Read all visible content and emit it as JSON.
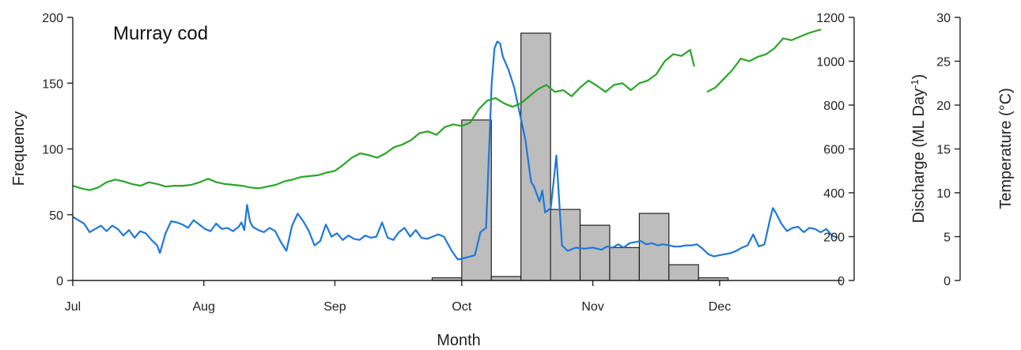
{
  "chart_data": {
    "type": "bar+line",
    "title": "Murray cod",
    "xlabel": "Month",
    "x_ticks": [
      "Jul",
      "Aug",
      "Sep",
      "Oct",
      "Nov",
      "Dec"
    ],
    "x_tick_days": [
      0,
      31,
      62,
      92,
      123,
      153
    ],
    "xlim_days": [
      0,
      182
    ],
    "axes": {
      "frequency": {
        "label": "Frequency",
        "range": [
          0,
          200
        ],
        "ticks": [
          0,
          50,
          100,
          150,
          200
        ]
      },
      "discharge": {
        "label": "Discharge (ML Day⁻¹)",
        "label_main": "Discharge (ML Day",
        "label_sup": "-1",
        "label_end": ")",
        "range": [
          0,
          1200
        ],
        "ticks": [
          0,
          200,
          400,
          600,
          800,
          1000,
          1200
        ]
      },
      "temperature": {
        "label": "Temperature (°C)",
        "range": [
          0,
          30
        ],
        "ticks": [
          0,
          5,
          10,
          15,
          20,
          25,
          30
        ]
      }
    },
    "bars": {
      "axis": "frequency",
      "color": "#bdbdbd",
      "items": [
        {
          "start": 85,
          "end": 92,
          "value": 2
        },
        {
          "start": 92,
          "end": 99,
          "value": 122
        },
        {
          "start": 99,
          "end": 106,
          "value": 3
        },
        {
          "start": 106,
          "end": 113,
          "value": 188
        },
        {
          "start": 113,
          "end": 120,
          "value": 54
        },
        {
          "start": 120,
          "end": 127,
          "value": 42
        },
        {
          "start": 127,
          "end": 134,
          "value": 25
        },
        {
          "start": 134,
          "end": 141,
          "value": 51
        },
        {
          "start": 141,
          "end": 148,
          "value": 12
        },
        {
          "start": 148,
          "end": 155,
          "value": 2
        }
      ]
    },
    "series": [
      {
        "axis": "discharge",
        "color": "#1f78d8",
        "points": [
          [
            0,
            290
          ],
          [
            2,
            275
          ],
          [
            4,
            260
          ],
          [
            6,
            220
          ],
          [
            8,
            235
          ],
          [
            10,
            250
          ],
          [
            12,
            225
          ],
          [
            14,
            250
          ],
          [
            16,
            235
          ],
          [
            18,
            205
          ],
          [
            20,
            230
          ],
          [
            22,
            195
          ],
          [
            24,
            225
          ],
          [
            26,
            215
          ],
          [
            28,
            185
          ],
          [
            30,
            160
          ],
          [
            31,
            125
          ],
          [
            33,
            215
          ],
          [
            35,
            270
          ],
          [
            37,
            265
          ],
          [
            39,
            255
          ],
          [
            41,
            240
          ],
          [
            43,
            275
          ],
          [
            45,
            255
          ],
          [
            47,
            235
          ],
          [
            49,
            225
          ],
          [
            51,
            260
          ],
          [
            53,
            235
          ],
          [
            55,
            240
          ],
          [
            57,
            225
          ],
          [
            59,
            245
          ],
          [
            60,
            265
          ],
          [
            61,
            230
          ],
          [
            62,
            345
          ],
          [
            63,
            270
          ],
          [
            64,
            245
          ],
          [
            66,
            230
          ],
          [
            68,
            220
          ],
          [
            70,
            240
          ],
          [
            72,
            225
          ],
          [
            74,
            175
          ],
          [
            76,
            135
          ],
          [
            78,
            250
          ],
          [
            80,
            305
          ],
          [
            82,
            270
          ],
          [
            84,
            225
          ],
          [
            86,
            160
          ],
          [
            88,
            180
          ],
          [
            90,
            255
          ],
          [
            92,
            200
          ],
          [
            94,
            215
          ],
          [
            96,
            185
          ],
          [
            98,
            205
          ],
          [
            100,
            190
          ],
          [
            102,
            185
          ],
          [
            104,
            205
          ],
          [
            106,
            195
          ],
          [
            108,
            200
          ],
          [
            110,
            265
          ],
          [
            112,
            195
          ],
          [
            114,
            185
          ],
          [
            116,
            220
          ],
          [
            118,
            240
          ],
          [
            120,
            200
          ],
          [
            122,
            230
          ],
          [
            124,
            195
          ],
          [
            126,
            190
          ],
          [
            128,
            200
          ],
          [
            130,
            210
          ],
          [
            132,
            200
          ],
          [
            135,
            130
          ],
          [
            137,
            95
          ],
          [
            140,
            105
          ],
          [
            143,
            115
          ],
          [
            145,
            220
          ],
          [
            147,
            240
          ],
          [
            149,
            900
          ],
          [
            150,
            1060
          ],
          [
            151,
            1090
          ],
          [
            152,
            1080
          ],
          [
            153,
            1020
          ],
          [
            155,
            960
          ],
          [
            157,
            880
          ],
          [
            159,
            760
          ],
          [
            161,
            640
          ],
          [
            163,
            450
          ],
          [
            164,
            430
          ],
          [
            166,
            360
          ],
          [
            167,
            410
          ],
          [
            168,
            310
          ],
          [
            170,
            330
          ],
          [
            172,
            570
          ],
          [
            174,
            160
          ],
          [
            176,
            135
          ],
          [
            179,
            150
          ],
          [
            182,
            145
          ],
          [
            185,
            150
          ],
          [
            188,
            140
          ],
          [
            190,
            155
          ],
          [
            192,
            150
          ],
          [
            194,
            165
          ],
          [
            196,
            150
          ],
          [
            198,
            170
          ],
          [
            200,
            175
          ],
          [
            202,
            180
          ],
          [
            204,
            165
          ],
          [
            206,
            170
          ],
          [
            208,
            160
          ],
          [
            210,
            165
          ],
          [
            212,
            160
          ],
          [
            214,
            155
          ],
          [
            216,
            155
          ],
          [
            218,
            160
          ],
          [
            220,
            160
          ],
          [
            222,
            165
          ],
          [
            224,
            145
          ],
          [
            226,
            120
          ],
          [
            228,
            110
          ],
          [
            230,
            115
          ],
          [
            232,
            120
          ],
          [
            234,
            125
          ],
          [
            236,
            135
          ],
          [
            238,
            150
          ],
          [
            240,
            160
          ],
          [
            242,
            210
          ],
          [
            244,
            155
          ],
          [
            246,
            165
          ],
          [
            248,
            280
          ],
          [
            249,
            330
          ],
          [
            250,
            310
          ],
          [
            252,
            260
          ],
          [
            254,
            225
          ],
          [
            256,
            240
          ],
          [
            258,
            245
          ],
          [
            260,
            220
          ],
          [
            262,
            240
          ],
          [
            264,
            235
          ],
          [
            266,
            220
          ],
          [
            268,
            235
          ],
          [
            270,
            205
          ],
          [
            272,
            195
          ]
        ],
        "x_scale": 0.665
      },
      {
        "axis": "temperature",
        "color": "#2aa52a",
        "points": [
          [
            0,
            10.8
          ],
          [
            2,
            10.5
          ],
          [
            4,
            10.3
          ],
          [
            6,
            10.6
          ],
          [
            8,
            11.2
          ],
          [
            10,
            11.5
          ],
          [
            12,
            11.3
          ],
          [
            14,
            11.0
          ],
          [
            16,
            10.8
          ],
          [
            18,
            11.2
          ],
          [
            20,
            11.0
          ],
          [
            22,
            10.7
          ],
          [
            24,
            10.8
          ],
          [
            26,
            10.8
          ],
          [
            28,
            10.9
          ],
          [
            30,
            11.2
          ],
          [
            32,
            11.6
          ],
          [
            34,
            11.2
          ],
          [
            36,
            11.0
          ],
          [
            38,
            10.9
          ],
          [
            40,
            10.8
          ],
          [
            42,
            10.6
          ],
          [
            44,
            10.5
          ],
          [
            46,
            10.7
          ],
          [
            48,
            10.9
          ],
          [
            50,
            11.3
          ],
          [
            52,
            11.5
          ],
          [
            54,
            11.8
          ],
          [
            56,
            11.9
          ],
          [
            58,
            12.0
          ],
          [
            60,
            12.3
          ],
          [
            62,
            12.5
          ],
          [
            64,
            13.2
          ],
          [
            66,
            14.0
          ],
          [
            68,
            14.5
          ],
          [
            70,
            14.3
          ],
          [
            72,
            14.0
          ],
          [
            74,
            14.5
          ],
          [
            76,
            15.2
          ],
          [
            78,
            15.5
          ],
          [
            80,
            16.0
          ],
          [
            82,
            16.8
          ],
          [
            84,
            17.0
          ],
          [
            86,
            16.6
          ],
          [
            88,
            17.5
          ],
          [
            90,
            17.8
          ],
          [
            92,
            17.6
          ],
          [
            94,
            18.0
          ],
          [
            96,
            19.5
          ],
          [
            98,
            20.5
          ],
          [
            100,
            20.8
          ],
          [
            102,
            20.2
          ],
          [
            104,
            19.8
          ],
          [
            106,
            20.2
          ],
          [
            108,
            21.0
          ],
          [
            110,
            21.8
          ],
          [
            112,
            22.3
          ],
          [
            114,
            21.5
          ],
          [
            116,
            21.7
          ],
          [
            118,
            21.0
          ],
          [
            120,
            22.0
          ],
          [
            122,
            22.8
          ],
          [
            124,
            22.2
          ],
          [
            126,
            21.5
          ],
          [
            128,
            22.3
          ],
          [
            130,
            22.5
          ],
          [
            132,
            21.7
          ],
          [
            134,
            22.5
          ],
          [
            136,
            22.8
          ],
          [
            138,
            23.5
          ],
          [
            140,
            25.0
          ],
          [
            142,
            25.8
          ],
          [
            144,
            25.6
          ],
          [
            146,
            26.3
          ],
          [
            147,
            24.4
          ],
          [
            148,
            null
          ],
          [
            150,
            21.5
          ],
          [
            152,
            22.0
          ],
          [
            154,
            23.0
          ],
          [
            156,
            24.0
          ],
          [
            158,
            25.3
          ],
          [
            160,
            25.0
          ],
          [
            162,
            25.5
          ],
          [
            164,
            25.8
          ],
          [
            166,
            26.5
          ],
          [
            168,
            27.6
          ],
          [
            170,
            27.4
          ],
          [
            172,
            27.8
          ],
          [
            174,
            28.2
          ],
          [
            176,
            28.5
          ],
          [
            177,
            28.6
          ]
        ],
        "x_scale": 1.0
      }
    ],
    "legend": "none",
    "grid": false
  }
}
